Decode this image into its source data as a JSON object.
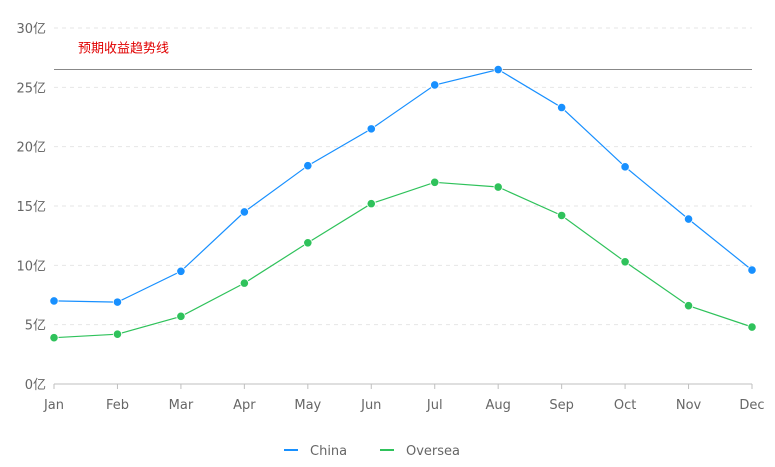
{
  "chart_data": {
    "type": "line",
    "categories": [
      "Jan",
      "Feb",
      "Mar",
      "Apr",
      "May",
      "Jun",
      "Jul",
      "Aug",
      "Sep",
      "Oct",
      "Nov",
      "Dec"
    ],
    "y_axis_suffix": "亿",
    "ylim": [
      0,
      30
    ],
    "y_ticks": [
      0,
      5,
      10,
      15,
      20,
      25,
      30
    ],
    "y_tick_labels": [
      "0亿",
      "5亿",
      "10亿",
      "15亿",
      "20亿",
      "25亿",
      "30亿"
    ],
    "grid": "horizontal-dashed",
    "legend_position": "bottom-center",
    "series": [
      {
        "name": "China",
        "color": "#1890ff",
        "values": [
          7.0,
          6.9,
          9.5,
          14.5,
          18.4,
          21.5,
          25.2,
          26.5,
          23.3,
          18.3,
          13.9,
          9.6
        ]
      },
      {
        "name": "Oversea",
        "color": "#2fc25b",
        "values": [
          3.9,
          4.2,
          5.7,
          8.5,
          11.9,
          15.2,
          17.0,
          16.6,
          14.2,
          10.3,
          6.6,
          4.8
        ]
      }
    ],
    "annotations": [
      {
        "type": "horizontal-line",
        "value": 26.5,
        "text": "预期收益趋势线",
        "text_color": "#e00000",
        "line_color": "#888888"
      }
    ]
  }
}
